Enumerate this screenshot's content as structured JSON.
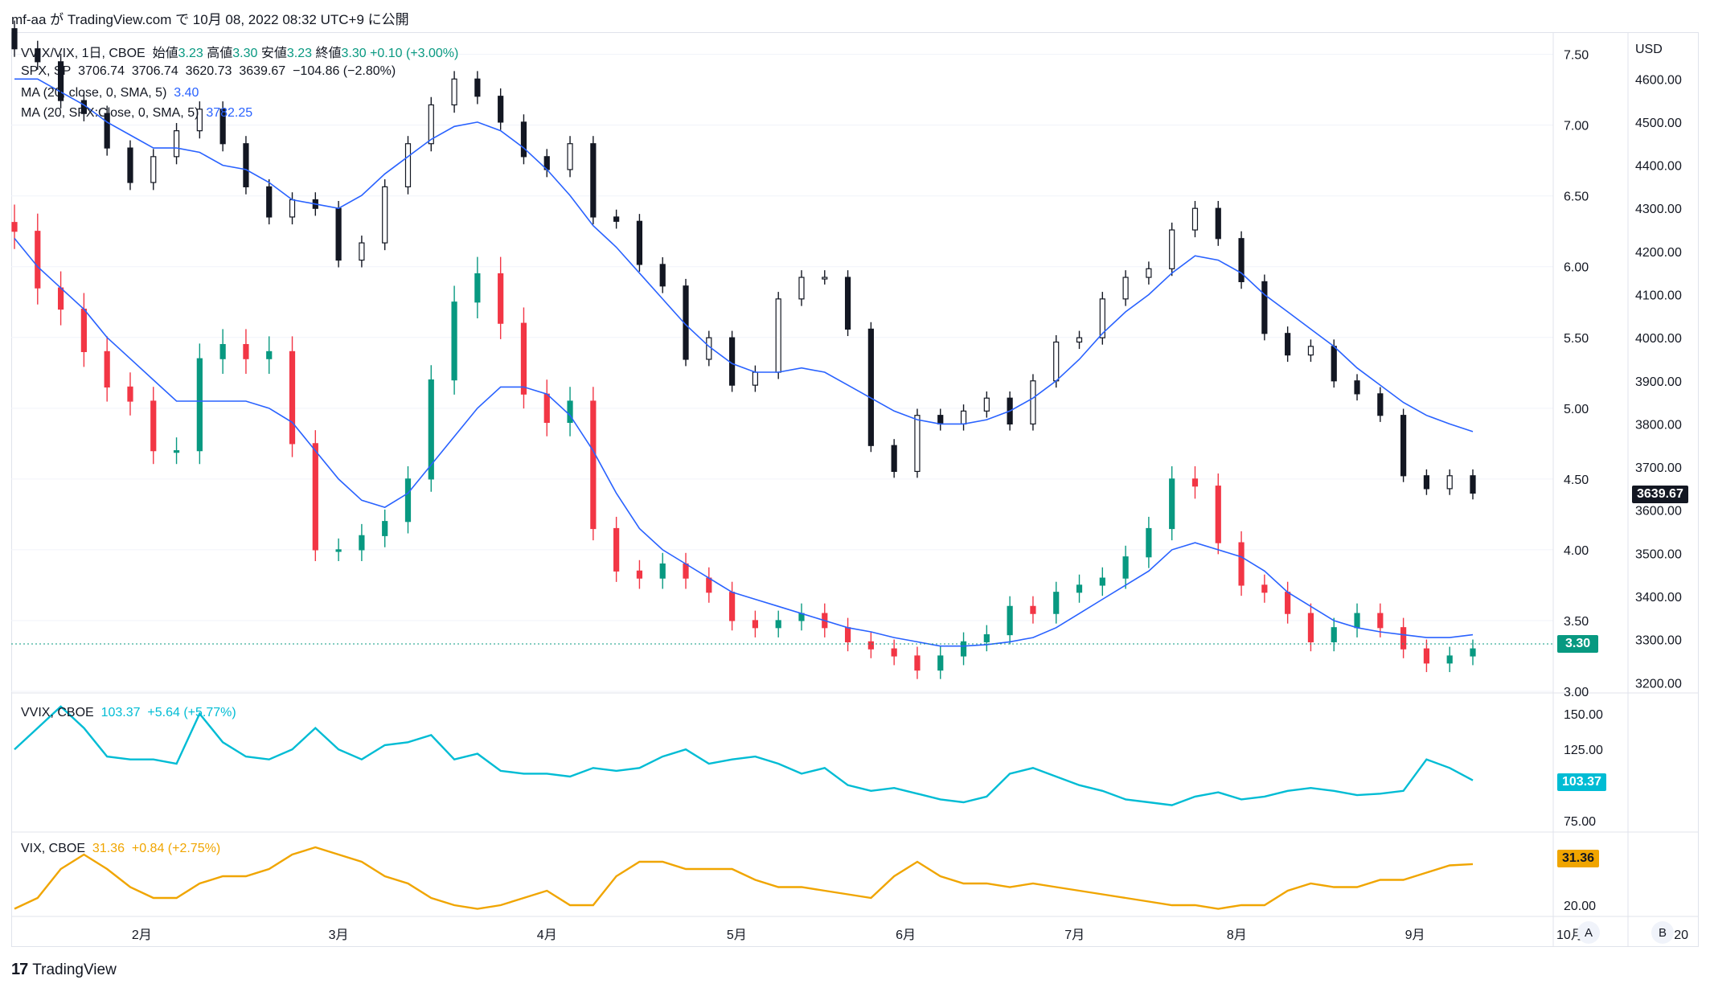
{
  "header": {
    "caption": "mf-aa が TradingView.com で 10月 08, 2022 08:32 UTC+9 に公開"
  },
  "footer": {
    "brand": "TradingView",
    "logo_glyph": "17"
  },
  "scale_buttons": [
    "A",
    "B"
  ],
  "colors": {
    "up": "#089981",
    "down": "#f23645",
    "ma": "#2962ff",
    "vvix": "#00bcd4",
    "vix": "#f0a500",
    "spx_candle": "#131722"
  },
  "main_pane": {
    "legend_ratio": {
      "symbol": "VVIX/VIX, 1日, CBOE",
      "open_label": "始値",
      "open": "3.23",
      "high_label": "高値",
      "high": "3.30",
      "low_label": "安値",
      "low": "3.23",
      "close_label": "終値",
      "close": "3.30",
      "change": "+0.10 (+3.00%)"
    },
    "legend_spx": {
      "symbol": "SPX, SP",
      "open": "3706.74",
      "high": "3706.74",
      "low": "3620.73",
      "close": "3639.67",
      "change": "−104.86 (−2.80%)"
    },
    "legend_ma1": {
      "label": "MA (20, close, 0, SMA, 5)",
      "value": "3.40"
    },
    "legend_ma2": {
      "label": "MA (20, SPX:Close, 0, SMA, 5)",
      "value": "3782.25"
    },
    "ratio_axis_ticks": [
      "7.50",
      "7.00",
      "6.50",
      "6.00",
      "5.50",
      "5.00",
      "4.50",
      "4.00",
      "3.50",
      "3.00"
    ],
    "spx_axis_unit": "USD",
    "spx_axis_ticks": [
      "4600.00",
      "4500.00",
      "4400.00",
      "4300.00",
      "4200.00",
      "4100.00",
      "4000.00",
      "3900.00",
      "3800.00",
      "3700.00",
      "3600.00",
      "3500.00",
      "3400.00",
      "3300.00",
      "3200.00"
    ],
    "spx_last_tag": "3639.67",
    "ratio_last_tag": "3.30"
  },
  "vvix_pane": {
    "legend": {
      "symbol": "VVIX, CBOE",
      "value": "103.37",
      "change": "+5.64 (+5.77%)"
    },
    "axis_ticks": [
      "150.00",
      "125.00",
      "75.00"
    ],
    "last_tag": "103.37"
  },
  "vix_pane": {
    "legend": {
      "symbol": "VIX, CBOE",
      "value": "31.36",
      "change": "+0.84 (+2.75%)"
    },
    "axis_ticks": [
      "20.00"
    ],
    "last_tag": "31.36"
  },
  "time_axis": [
    "2月",
    "3月",
    "4月",
    "5月",
    "6月",
    "7月",
    "8月",
    "9月",
    "10月",
    "20"
  ],
  "chart_data": [
    {
      "type": "candlestick",
      "name": "VVIX/VIX",
      "x_range": [
        "2022-01-07",
        "2022-10-07"
      ],
      "ylim": [
        3.0,
        7.6
      ],
      "axis": "right-inner",
      "x": [
        "01-07",
        "01-11",
        "01-14",
        "01-19",
        "01-24",
        "01-27",
        "02-01",
        "02-04",
        "02-09",
        "02-14",
        "02-17",
        "02-23",
        "02-28",
        "03-03",
        "03-08",
        "03-11",
        "03-16",
        "03-21",
        "03-24",
        "03-29",
        "04-01",
        "04-06",
        "04-11",
        "04-14",
        "04-20",
        "04-25",
        "04-28",
        "05-03",
        "05-06",
        "05-11",
        "05-16",
        "05-19",
        "05-24",
        "05-27",
        "06-02",
        "06-07",
        "06-10",
        "06-15",
        "06-20",
        "06-24",
        "06-29",
        "07-05",
        "07-08",
        "07-13",
        "07-18",
        "07-21",
        "07-26",
        "07-29",
        "08-03",
        "08-08",
        "08-11",
        "08-16",
        "08-19",
        "08-24",
        "08-29",
        "09-01",
        "09-07",
        "09-12",
        "09-15",
        "09-20",
        "09-23",
        "09-28",
        "10-03",
        "10-07"
      ],
      "close": [
        6.25,
        5.85,
        5.7,
        5.4,
        5.15,
        5.05,
        4.7,
        4.7,
        5.35,
        5.45,
        5.35,
        5.4,
        4.75,
        4.0,
        4.0,
        4.1,
        4.2,
        4.5,
        5.2,
        5.75,
        5.95,
        5.6,
        5.1,
        4.9,
        5.05,
        4.15,
        3.85,
        3.8,
        3.9,
        3.8,
        3.7,
        3.5,
        3.45,
        3.5,
        3.55,
        3.45,
        3.35,
        3.3,
        3.25,
        3.15,
        3.25,
        3.35,
        3.4,
        3.6,
        3.55,
        3.7,
        3.75,
        3.8,
        3.95,
        4.15,
        4.5,
        4.45,
        4.05,
        3.75,
        3.7,
        3.55,
        3.35,
        3.45,
        3.55,
        3.45,
        3.3,
        3.2,
        3.25,
        3.3
      ],
      "ma_close": [
        6.2,
        6.0,
        5.85,
        5.7,
        5.5,
        5.35,
        5.2,
        5.05,
        5.05,
        5.05,
        5.05,
        5.0,
        4.9,
        4.7,
        4.5,
        4.35,
        4.3,
        4.4,
        4.6,
        4.8,
        5.0,
        5.15,
        5.15,
        5.1,
        4.95,
        4.7,
        4.4,
        4.15,
        4.0,
        3.9,
        3.8,
        3.7,
        3.65,
        3.6,
        3.55,
        3.5,
        3.45,
        3.42,
        3.38,
        3.35,
        3.32,
        3.32,
        3.33,
        3.35,
        3.38,
        3.45,
        3.55,
        3.65,
        3.75,
        3.85,
        4.0,
        4.05,
        4.0,
        3.95,
        3.85,
        3.7,
        3.6,
        3.5,
        3.45,
        3.42,
        3.4,
        3.38,
        3.38,
        3.4
      ]
    },
    {
      "type": "candlestick",
      "name": "SPX",
      "ylim": [
        3180,
        4690
      ],
      "axis": "right-outer",
      "close": [
        4670,
        4640,
        4550,
        4520,
        4440,
        4360,
        4420,
        4480,
        4530,
        4450,
        4350,
        4280,
        4320,
        4300,
        4180,
        4220,
        4350,
        4450,
        4540,
        4600,
        4560,
        4500,
        4420,
        4390,
        4450,
        4280,
        4270,
        4170,
        4120,
        3950,
        4000,
        3890,
        3920,
        4090,
        4140,
        4140,
        4020,
        3750,
        3690,
        3820,
        3800,
        3830,
        3860,
        3800,
        3900,
        3990,
        4000,
        4090,
        4140,
        4160,
        4250,
        4300,
        4230,
        4130,
        4010,
        3960,
        3980,
        3900,
        3870,
        3820,
        3680,
        3650,
        3680,
        3639.67
      ],
      "ma_close": [
        4600,
        4600,
        4570,
        4540,
        4500,
        4470,
        4440,
        4440,
        4430,
        4400,
        4390,
        4360,
        4320,
        4310,
        4300,
        4330,
        4380,
        4420,
        4460,
        4490,
        4500,
        4480,
        4440,
        4390,
        4330,
        4260,
        4210,
        4150,
        4090,
        4030,
        3980,
        3940,
        3920,
        3920,
        3930,
        3920,
        3890,
        3860,
        3830,
        3810,
        3800,
        3800,
        3810,
        3830,
        3860,
        3900,
        3950,
        4010,
        4060,
        4100,
        4150,
        4190,
        4180,
        4150,
        4100,
        4060,
        4020,
        3980,
        3930,
        3890,
        3850,
        3820,
        3800,
        3782.25
      ],
      "last": 3639.67
    },
    {
      "type": "line",
      "name": "VVIX",
      "ylim": [
        70,
        160
      ],
      "values": [
        125,
        140,
        155,
        140,
        120,
        118,
        118,
        115,
        150,
        130,
        120,
        118,
        125,
        140,
        125,
        118,
        128,
        130,
        135,
        118,
        122,
        110,
        108,
        108,
        106,
        112,
        110,
        112,
        120,
        125,
        115,
        118,
        120,
        115,
        108,
        112,
        100,
        96,
        98,
        94,
        90,
        88,
        92,
        108,
        112,
        106,
        100,
        96,
        90,
        88,
        86,
        92,
        95,
        90,
        92,
        96,
        98,
        96,
        93,
        94,
        96,
        118,
        112,
        103.37
      ],
      "last": 103.37
    },
    {
      "type": "line",
      "name": "VIX",
      "ylim": [
        18,
        38
      ],
      "values": [
        19,
        22,
        30,
        34,
        30,
        25,
        22,
        22,
        26,
        28,
        28,
        30,
        34,
        36,
        34,
        32,
        28,
        26,
        22,
        20,
        19,
        20,
        22,
        24,
        20,
        20,
        28,
        32,
        32,
        30,
        30,
        30,
        27,
        25,
        25,
        24,
        23,
        22,
        28,
        32,
        28,
        26,
        26,
        25,
        26,
        25,
        24,
        23,
        22,
        21,
        20,
        20,
        19,
        20,
        20,
        24,
        26,
        25,
        25,
        27,
        27,
        29,
        31,
        31.36
      ],
      "last": 31.36
    }
  ]
}
